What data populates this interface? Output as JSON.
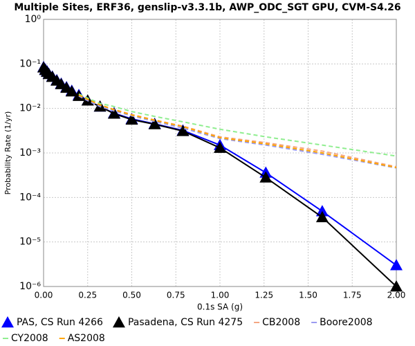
{
  "chart_data": {
    "type": "line",
    "title": "Multiple Sites, ERF36, genslip-v3.3.1b, AWP_ODC_SGT GPU, CVM-S4.26",
    "x_label": "0.1s SA (g)",
    "y_label": "Probability Rate (1/yr)",
    "y_log": true,
    "grid": true,
    "legend": "bottom",
    "xlim": [
      0,
      2
    ],
    "ylim": [
      1e-06,
      1
    ],
    "xticks": [
      {
        "value": 0,
        "label": "0.00"
      },
      {
        "value": 0.25,
        "label": "0.25"
      },
      {
        "value": 0.5,
        "label": "0.50"
      },
      {
        "value": 0.75,
        "label": "0.75"
      },
      {
        "value": 1,
        "label": "1.00"
      },
      {
        "value": 1.25,
        "label": "1.25"
      },
      {
        "value": 1.5,
        "label": "1.50"
      },
      {
        "value": 1.75,
        "label": "1.75"
      },
      {
        "value": 2,
        "label": "2.00"
      }
    ],
    "yticks": [
      {
        "value": 1e-06,
        "label": "10⁻⁶"
      },
      {
        "value": 1e-05,
        "label": "10⁻⁵"
      },
      {
        "value": 0.0001,
        "label": "10⁻⁴"
      },
      {
        "value": 0.001,
        "label": "10⁻³"
      },
      {
        "value": 0.01,
        "label": "10⁻²"
      },
      {
        "value": 0.1,
        "label": "10⁻¹"
      },
      {
        "value": 1,
        "label": "10⁰"
      }
    ],
    "series": [
      {
        "name": "PAS, CS Run 4266",
        "color": "#0000ff",
        "marker": "triangle",
        "dash": false,
        "x": [
          0,
          0.01,
          0.02,
          0.03,
          0.05,
          0.075,
          0.1,
          0.13,
          0.16,
          0.2,
          0.25,
          0.32,
          0.4,
          0.5,
          0.63,
          0.79,
          1.0,
          1.26,
          1.58,
          2.0
        ],
        "values": [
          0.085,
          0.075,
          0.068,
          0.06,
          0.052,
          0.043,
          0.036,
          0.03,
          0.025,
          0.02,
          0.015,
          0.011,
          0.0078,
          0.0058,
          0.0045,
          0.0032,
          0.0015,
          0.00036,
          4.9e-05,
          3e-06
        ]
      },
      {
        "name": "Pasadena, CS Run 4275",
        "color": "#000000",
        "marker": "triangle",
        "dash": false,
        "x": [
          0,
          0.01,
          0.02,
          0.03,
          0.05,
          0.075,
          0.1,
          0.13,
          0.16,
          0.2,
          0.25,
          0.32,
          0.4,
          0.5,
          0.63,
          0.79,
          1.0,
          1.26,
          1.58,
          2.0
        ],
        "values": [
          0.083,
          0.073,
          0.066,
          0.059,
          0.051,
          0.042,
          0.035,
          0.029,
          0.024,
          0.019,
          0.015,
          0.011,
          0.0076,
          0.0056,
          0.0044,
          0.0031,
          0.0013,
          0.00028,
          3.6e-05,
          1e-06
        ]
      },
      {
        "name": "CB2008",
        "color": "#f4a582",
        "marker": "none",
        "dash": true,
        "x": [
          0.2,
          0.25,
          0.32,
          0.4,
          0.5,
          0.63,
          0.79,
          1.0,
          1.26,
          1.58,
          2.0
        ],
        "values": [
          0.02,
          0.016,
          0.012,
          0.0095,
          0.0073,
          0.0055,
          0.004,
          0.0023,
          0.0017,
          0.0011,
          0.00049
        ]
      },
      {
        "name": "Boore2008",
        "color": "#9a9af0",
        "marker": "none",
        "dash": true,
        "x": [
          0.2,
          0.25,
          0.32,
          0.4,
          0.5,
          0.63,
          0.79,
          1.0,
          1.26,
          1.58,
          2.0
        ],
        "values": [
          0.019,
          0.015,
          0.011,
          0.0088,
          0.0068,
          0.0051,
          0.0036,
          0.0021,
          0.0015,
          0.00093,
          0.00046
        ]
      },
      {
        "name": "CY2008",
        "color": "#90ee90",
        "marker": "none",
        "dash": true,
        "x": [
          0.2,
          0.25,
          0.32,
          0.4,
          0.5,
          0.63,
          0.79,
          1.0,
          1.26,
          1.58,
          2.0
        ],
        "values": [
          0.021,
          0.017,
          0.013,
          0.011,
          0.0085,
          0.0066,
          0.005,
          0.0034,
          0.0023,
          0.0015,
          0.00085
        ]
      },
      {
        "name": "AS2008",
        "color": "#ffa500",
        "marker": "none",
        "dash": true,
        "x": [
          0.2,
          0.25,
          0.32,
          0.4,
          0.5,
          0.63,
          0.79,
          1.0,
          1.26,
          1.58,
          2.0
        ],
        "values": [
          0.02,
          0.016,
          0.012,
          0.0093,
          0.0071,
          0.0054,
          0.0039,
          0.0022,
          0.0016,
          0.001,
          0.00047
        ]
      }
    ]
  }
}
